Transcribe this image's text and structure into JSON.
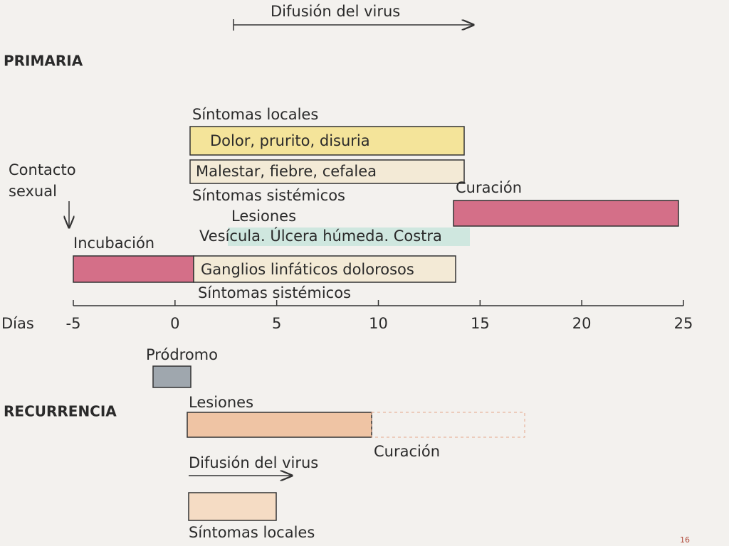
{
  "header": {
    "title": "Difusión del virus"
  },
  "primary": {
    "title": "PRIMARIA",
    "local_symptoms": "Síntomas locales",
    "local_box": "Dolor, prurito, disuria",
    "systemic_box": "Malestar, fiebre, cefalea",
    "systemic_symptoms": "Síntomas sistémicos",
    "contact_line1": "Contacto",
    "contact_line2": "sexual",
    "healing": "Curación",
    "lesions": "Lesiones",
    "lesions_detail": "Vesícula. Úlcera húmeda. Costra",
    "incubation": "Incubación",
    "lymph_box": "Ganglios linfáticos dolorosos",
    "systemic_symptoms_2": "Síntomas sistémicos"
  },
  "axis": {
    "label": "Días",
    "xlim": [
      -5,
      25
    ],
    "xticks": [
      -5,
      0,
      5,
      10,
      15,
      20,
      25
    ]
  },
  "recurrence": {
    "prodrome": "Pródromo",
    "title": "RECURRENCIA",
    "lesions": "Lesiones",
    "healing": "Curación",
    "virus_spread": "Difusión del virus",
    "local_symptoms": "Síntomas locales"
  },
  "page_number": "16"
}
